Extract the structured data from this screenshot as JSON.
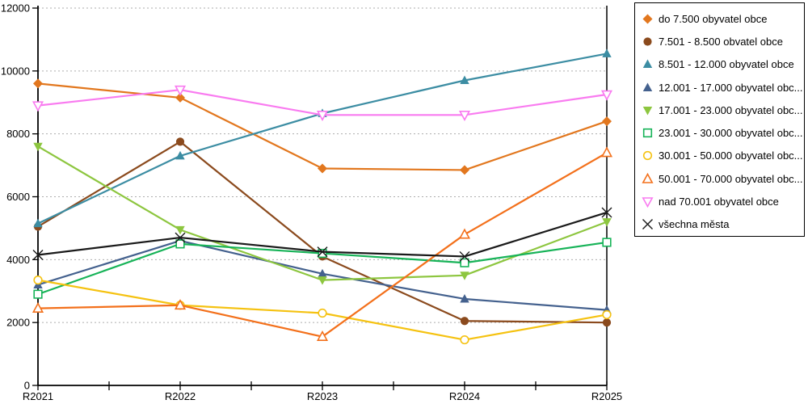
{
  "chart_data": {
    "type": "line",
    "title": "",
    "xlabel": "",
    "ylabel": "",
    "categories": [
      "R2021",
      "R2022",
      "R2023",
      "R2024",
      "R2025"
    ],
    "ylim": [
      0,
      12000
    ],
    "yticks": [
      0,
      2000,
      4000,
      6000,
      8000,
      10000,
      12000
    ],
    "grid": "horizontal-dashed",
    "grid_color": "#ADADAD",
    "axis_color": "#000000",
    "legend_position": "top-right",
    "series": [
      {
        "name": "do 7.500 obyvatel obce",
        "color": "#E2771E",
        "marker": "diamond-filled",
        "values": [
          9600,
          9150,
          6900,
          6850,
          8400
        ]
      },
      {
        "name": "7.501 - 8.500 obvatel obce",
        "color": "#8B4A1D",
        "marker": "circle-filled",
        "values": [
          5050,
          7750,
          4100,
          2050,
          2000
        ]
      },
      {
        "name": "8.501 - 12.000 obyvatel obce",
        "color": "#3C8DA3",
        "marker": "triangle-up-filled",
        "values": [
          5150,
          7300,
          8650,
          9700,
          10550
        ]
      },
      {
        "name": "12.001 - 17.000 obyvatel obc...",
        "color": "#44618E",
        "marker": "triangle-up-filled",
        "values": [
          3200,
          4600,
          3550,
          2750,
          2400
        ]
      },
      {
        "name": "17.001 - 23.000 obyvatel obc...",
        "color": "#8DC63F",
        "marker": "triangle-down-filled",
        "values": [
          7600,
          4950,
          3350,
          3500,
          5200
        ]
      },
      {
        "name": "23.001 - 30.000 obyvatel obc...",
        "color": "#17B358",
        "marker": "square-open",
        "values": [
          2900,
          4500,
          4200,
          3900,
          4550
        ]
      },
      {
        "name": "30.001 - 50.000 obyvatel obc...",
        "color": "#F5C211",
        "marker": "circle-open",
        "values": [
          3350,
          2550,
          2300,
          1450,
          2250
        ]
      },
      {
        "name": "50.001 - 70.000 obyvatel obc...",
        "color": "#F3701B",
        "marker": "triangle-up-open",
        "values": [
          2450,
          2550,
          1550,
          4800,
          7400
        ]
      },
      {
        "name": "nad 70.001 obyvatel obce",
        "color": "#F97BF0",
        "marker": "triangle-down-open",
        "values": [
          8900,
          9400,
          8600,
          8600,
          9250
        ]
      },
      {
        "name": "všechna města",
        "color": "#1A1A1A",
        "marker": "x",
        "values": [
          4150,
          4700,
          4250,
          4100,
          5500
        ]
      }
    ]
  }
}
